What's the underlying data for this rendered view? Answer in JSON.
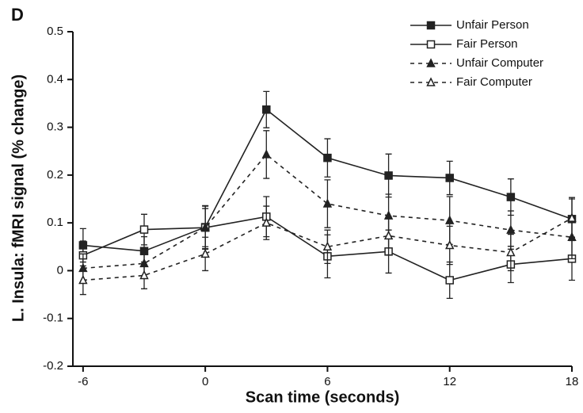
{
  "chart_data": {
    "type": "line",
    "panel_label": "D",
    "x_label": "Scan time (seconds)",
    "y_label": "L. Insula: fMRI signal (% change)",
    "x": [
      -6,
      -3,
      0,
      3,
      6,
      9,
      12,
      15,
      18
    ],
    "series": [
      {
        "name": "Unfair Person",
        "color": "#222222",
        "marker": "filled-square",
        "dashed": false,
        "values": [
          0.053,
          0.041,
          0.091,
          0.337,
          0.236,
          0.199,
          0.194,
          0.154,
          0.108
        ],
        "errors": [
          0.035,
          0.03,
          0.045,
          0.038,
          0.04,
          0.045,
          0.035,
          0.038,
          0.045
        ]
      },
      {
        "name": "Fair Person",
        "color": "#222222",
        "marker": "open-square",
        "dashed": false,
        "values": [
          0.032,
          0.086,
          0.09,
          0.113,
          0.03,
          0.04,
          -0.02,
          0.013,
          0.025
        ],
        "errors": [
          0.03,
          0.032,
          0.04,
          0.042,
          0.045,
          0.045,
          0.038,
          0.038,
          0.045
        ]
      },
      {
        "name": "Unfair Computer",
        "color": "#222222",
        "marker": "filled-triangle",
        "dashed": true,
        "values": [
          0.005,
          0.015,
          0.09,
          0.243,
          0.14,
          0.115,
          0.105,
          0.085,
          0.07
        ],
        "errors": [
          0.03,
          0.03,
          0.045,
          0.05,
          0.05,
          0.045,
          0.05,
          0.04,
          0.045
        ]
      },
      {
        "name": "Fair Computer",
        "color": "#222222",
        "marker": "open-triangle",
        "dashed": true,
        "values": [
          -0.02,
          -0.01,
          0.035,
          0.1,
          0.05,
          0.073,
          0.053,
          0.038,
          0.11
        ],
        "errors": [
          0.03,
          0.028,
          0.035,
          0.035,
          0.035,
          0.04,
          0.04,
          0.038,
          0.04
        ]
      }
    ],
    "xlim": [
      -6.5,
      18
    ],
    "xticks": [
      -6,
      0,
      6,
      12,
      18
    ],
    "ylim": [
      -0.2,
      0.5
    ],
    "yticks": [
      -0.2,
      -0.1,
      0,
      0.1,
      0.2,
      0.3,
      0.4,
      0.5
    ],
    "legend": "upper right",
    "grid": false
  }
}
